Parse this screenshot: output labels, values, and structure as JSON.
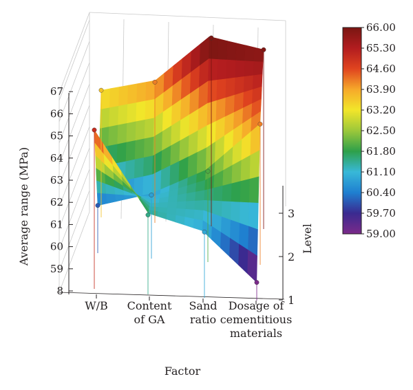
{
  "chart_data": {
    "type": "surface",
    "xlabel": "Factor",
    "ylabel": "Level",
    "zlabel": "Average range (MPa)",
    "x_categories": [
      "W/B",
      "Content\nof GA",
      "Sand\nratio",
      "Dosage of\ncementitious\nmaterials"
    ],
    "y_levels": [
      1,
      2,
      3
    ],
    "z_ticks": [
      "8",
      "59",
      "60",
      "61",
      "62",
      "63",
      "64",
      "65",
      "66",
      "67"
    ],
    "zlim": [
      58,
      67
    ],
    "values": [
      [
        65.0,
        60.1,
        63.6
      ],
      [
        61.5,
        60.8,
        64.2
      ],
      [
        60.9,
        62.0,
        66.3
      ],
      [
        58.8,
        64.2,
        65.9
      ]
    ],
    "colorbar": {
      "min": 59.0,
      "max": 66.0,
      "ticks": [
        "66.00",
        "65.30",
        "64.60",
        "63.90",
        "63.20",
        "62.50",
        "61.80",
        "61.10",
        "60.40",
        "59.70",
        "59.00"
      ],
      "colors": [
        "#7b2a8a",
        "#3a2a90",
        "#1f7fd0",
        "#38b8d8",
        "#2ea04a",
        "#9cc83a",
        "#f2e62a",
        "#f6a92a",
        "#e0441f",
        "#b21c1f",
        "#7a1612"
      ]
    },
    "grid": true
  }
}
